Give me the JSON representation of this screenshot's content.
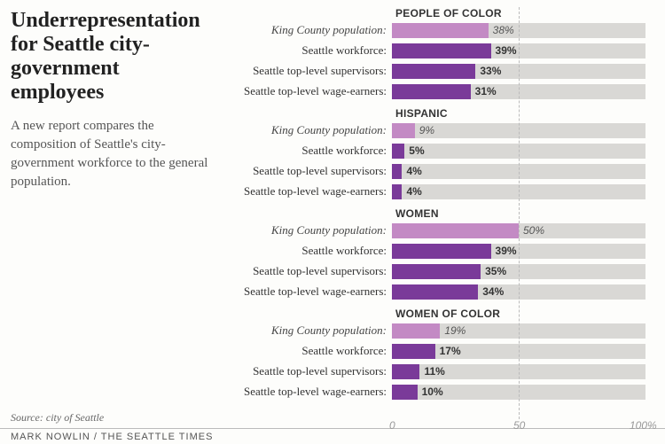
{
  "title": "Underrepresentation for Seattle city-government employees",
  "subtitle": "A new report compares the composition of Seattle's city-government workforce to the general population.",
  "source": "Source: city of Seattle",
  "credit": "MARK NOWLIN / THE SEATTLE TIMES",
  "chart": {
    "type": "bar",
    "xlim": [
      0,
      100
    ],
    "xticks": [
      0,
      50,
      100
    ],
    "xtick_labels": [
      "0",
      "50",
      "100%"
    ],
    "track_color": "#d9d8d5",
    "gridline_color": "#bbbbbb",
    "background_color": "#fdfdfb",
    "population_color": "#c38ac4",
    "workforce_color": "#7a3a99",
    "label_fontsize": 13,
    "header_fontsize": 12,
    "value_fontsize": 12,
    "groups": [
      {
        "header": "PEOPLE OF COLOR",
        "rows": [
          {
            "label": "King County population:",
            "value": 38,
            "display": "38%",
            "is_population": true
          },
          {
            "label": "Seattle workforce:",
            "value": 39,
            "display": "39%",
            "is_population": false
          },
          {
            "label": "Seattle top-level supervisors:",
            "value": 33,
            "display": "33%",
            "is_population": false
          },
          {
            "label": "Seattle top-level wage-earners:",
            "value": 31,
            "display": "31%",
            "is_population": false
          }
        ]
      },
      {
        "header": "HISPANIC",
        "rows": [
          {
            "label": "King County population:",
            "value": 9,
            "display": "9%",
            "is_population": true
          },
          {
            "label": "Seattle workforce:",
            "value": 5,
            "display": "5%",
            "is_population": false
          },
          {
            "label": "Seattle top-level supervisors:",
            "value": 4,
            "display": "4%",
            "is_population": false
          },
          {
            "label": "Seattle top-level wage-earners:",
            "value": 4,
            "display": "4%",
            "is_population": false
          }
        ]
      },
      {
        "header": "WOMEN",
        "rows": [
          {
            "label": "King County population:",
            "value": 50,
            "display": "50%",
            "is_population": true
          },
          {
            "label": "Seattle workforce:",
            "value": 39,
            "display": "39%",
            "is_population": false
          },
          {
            "label": "Seattle top-level supervisors:",
            "value": 35,
            "display": "35%",
            "is_population": false
          },
          {
            "label": "Seattle top-level wage-earners:",
            "value": 34,
            "display": "34%",
            "is_population": false
          }
        ]
      },
      {
        "header": "WOMEN OF COLOR",
        "rows": [
          {
            "label": "King County population:",
            "value": 19,
            "display": "19%",
            "is_population": true
          },
          {
            "label": "Seattle workforce:",
            "value": 17,
            "display": "17%",
            "is_population": false
          },
          {
            "label": "Seattle top-level supervisors:",
            "value": 11,
            "display": "11%",
            "is_population": false
          },
          {
            "label": "Seattle top-level wage-earners:",
            "value": 10,
            "display": "10%",
            "is_population": false
          }
        ]
      }
    ]
  }
}
